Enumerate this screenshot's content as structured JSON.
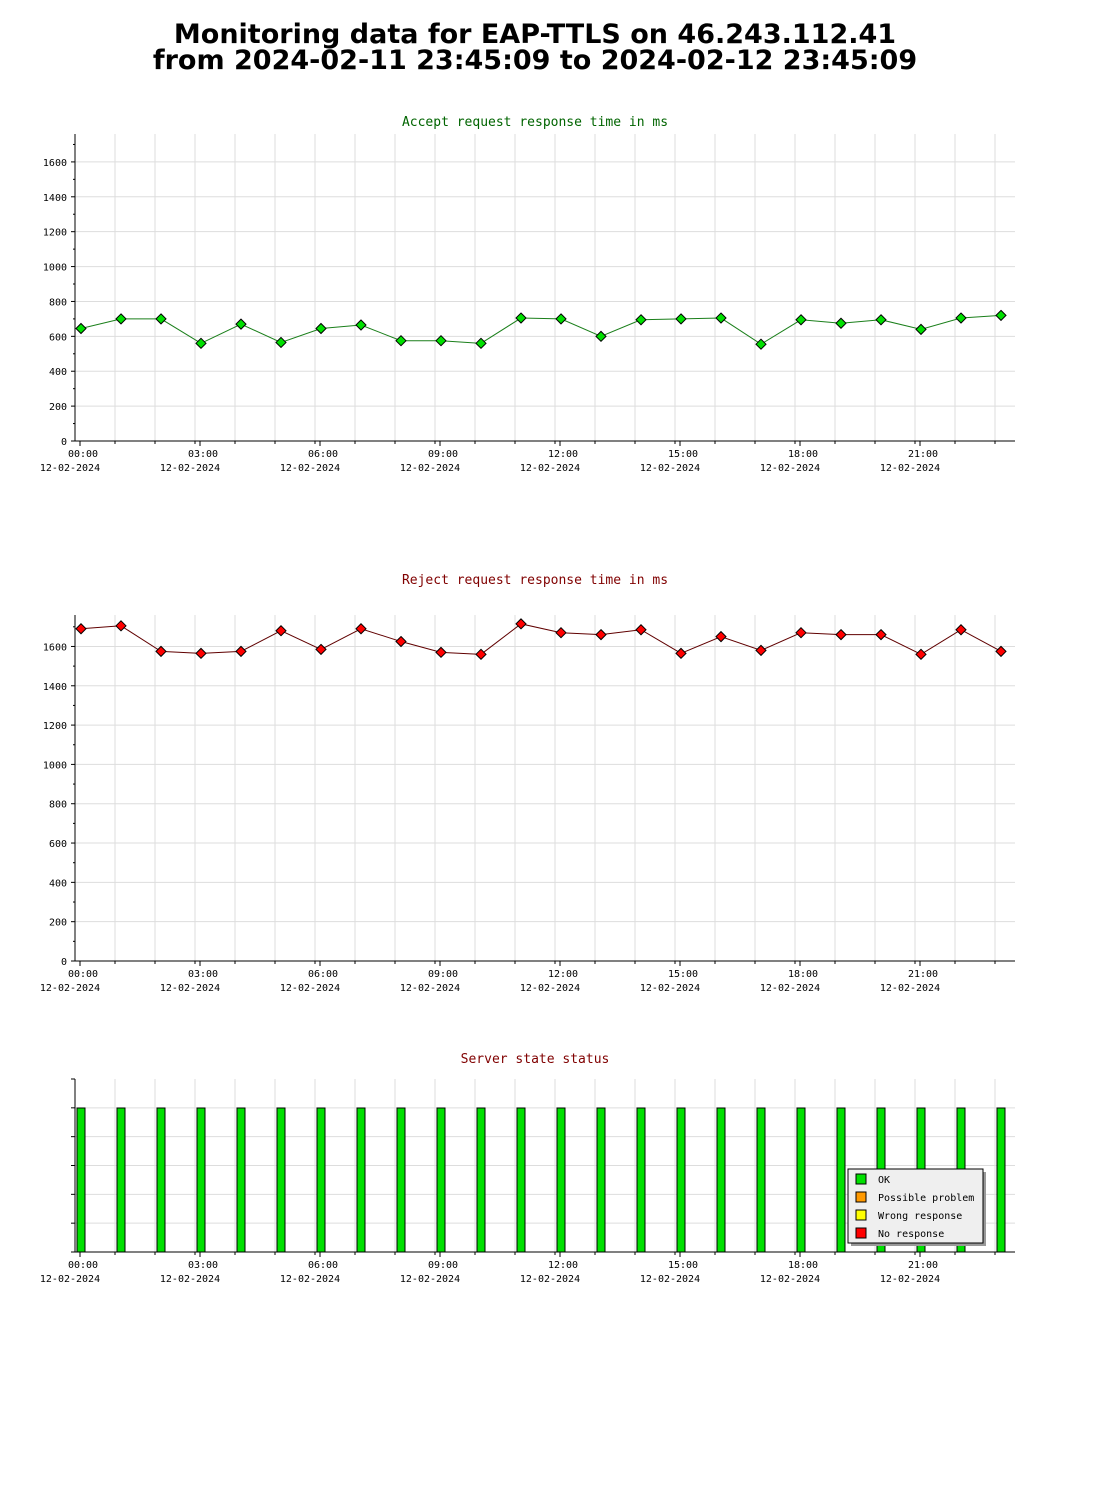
{
  "page": {
    "title_line1": "Monitoring data for EAP-TTLS on 46.243.112.41",
    "title_line2": "from 2024-02-11 23:45:09 to 2024-02-12 23:45:09"
  },
  "colors": {
    "accept_title": "#006400",
    "reject_title": "#800000",
    "state_title": "#800000",
    "accept_point": "#00e000",
    "accept_line": "#1a7f1a",
    "reject_point": "#ff0000",
    "reject_line": "#600000",
    "ok": "#00e000",
    "possible_problem": "#ff9900",
    "wrong_response": "#ffff00",
    "no_response": "#ff0000",
    "grid": "#dddddd"
  },
  "x_axis": {
    "ticks": [
      {
        "time": "00:00",
        "date": "12-02-2024"
      },
      {
        "time": "03:00",
        "date": "12-02-2024"
      },
      {
        "time": "06:00",
        "date": "12-02-2024"
      },
      {
        "time": "09:00",
        "date": "12-02-2024"
      },
      {
        "time": "12:00",
        "date": "12-02-2024"
      },
      {
        "time": "15:00",
        "date": "12-02-2024"
      },
      {
        "time": "18:00",
        "date": "12-02-2024"
      },
      {
        "time": "21:00",
        "date": "12-02-2024"
      }
    ]
  },
  "chart_data": [
    {
      "type": "line",
      "title": "Accept request response time in ms",
      "xlabel": "",
      "ylabel": "",
      "ylim": [
        0,
        1760
      ],
      "yticks": [
        0,
        200,
        400,
        600,
        800,
        1000,
        1200,
        1400,
        1600
      ],
      "grid": true,
      "x": [
        "2024-02-12 00:00",
        "2024-02-12 01:00",
        "2024-02-12 02:00",
        "2024-02-12 03:00",
        "2024-02-12 04:00",
        "2024-02-12 05:00",
        "2024-02-12 06:00",
        "2024-02-12 07:00",
        "2024-02-12 08:00",
        "2024-02-12 09:00",
        "2024-02-12 10:00",
        "2024-02-12 11:00",
        "2024-02-12 12:00",
        "2024-02-12 13:00",
        "2024-02-12 14:00",
        "2024-02-12 15:00",
        "2024-02-12 16:00",
        "2024-02-12 17:00",
        "2024-02-12 18:00",
        "2024-02-12 19:00",
        "2024-02-12 20:00",
        "2024-02-12 21:00",
        "2024-02-12 22:00",
        "2024-02-12 23:00"
      ],
      "values": [
        645,
        700,
        700,
        560,
        670,
        565,
        645,
        665,
        575,
        575,
        560,
        705,
        700,
        600,
        695,
        700,
        705,
        555,
        695,
        675,
        695,
        640,
        705,
        720
      ]
    },
    {
      "type": "line",
      "title": "Reject request response time in ms",
      "xlabel": "",
      "ylabel": "",
      "ylim": [
        0,
        1760
      ],
      "yticks": [
        0,
        200,
        400,
        600,
        800,
        1000,
        1200,
        1400,
        1600
      ],
      "grid": true,
      "x": [
        "2024-02-12 00:00",
        "2024-02-12 01:00",
        "2024-02-12 02:00",
        "2024-02-12 03:00",
        "2024-02-12 04:00",
        "2024-02-12 05:00",
        "2024-02-12 06:00",
        "2024-02-12 07:00",
        "2024-02-12 08:00",
        "2024-02-12 09:00",
        "2024-02-12 10:00",
        "2024-02-12 11:00",
        "2024-02-12 12:00",
        "2024-02-12 13:00",
        "2024-02-12 14:00",
        "2024-02-12 15:00",
        "2024-02-12 16:00",
        "2024-02-12 17:00",
        "2024-02-12 18:00",
        "2024-02-12 19:00",
        "2024-02-12 20:00",
        "2024-02-12 21:00",
        "2024-02-12 22:00",
        "2024-02-12 23:00"
      ],
      "values": [
        1690,
        1705,
        1575,
        1565,
        1575,
        1680,
        1585,
        1690,
        1625,
        1570,
        1560,
        1715,
        1670,
        1660,
        1685,
        1565,
        1650,
        1580,
        1670,
        1660,
        1660,
        1560,
        1685,
        1575
      ]
    },
    {
      "type": "bar",
      "title": "Server state status",
      "xlabel": "",
      "ylabel": "",
      "grid": true,
      "x": [
        "2024-02-12 00:00",
        "2024-02-12 01:00",
        "2024-02-12 02:00",
        "2024-02-12 03:00",
        "2024-02-12 04:00",
        "2024-02-12 05:00",
        "2024-02-12 06:00",
        "2024-02-12 07:00",
        "2024-02-12 08:00",
        "2024-02-12 09:00",
        "2024-02-12 10:00",
        "2024-02-12 11:00",
        "2024-02-12 12:00",
        "2024-02-12 13:00",
        "2024-02-12 14:00",
        "2024-02-12 15:00",
        "2024-02-12 16:00",
        "2024-02-12 17:00",
        "2024-02-12 18:00",
        "2024-02-12 19:00",
        "2024-02-12 20:00",
        "2024-02-12 21:00",
        "2024-02-12 22:00",
        "2024-02-12 23:00"
      ],
      "states": [
        "OK",
        "OK",
        "OK",
        "OK",
        "OK",
        "OK",
        "OK",
        "OK",
        "OK",
        "OK",
        "OK",
        "OK",
        "OK",
        "OK",
        "OK",
        "OK",
        "OK",
        "OK",
        "OK",
        "OK",
        "OK",
        "OK",
        "OK",
        "OK"
      ],
      "legend_position": "bottom-right",
      "legend": [
        {
          "label": "OK",
          "color": "#00e000"
        },
        {
          "label": "Possible problem",
          "color": "#ff9900"
        },
        {
          "label": "Wrong response",
          "color": "#ffff00"
        },
        {
          "label": "No response",
          "color": "#ff0000"
        }
      ]
    }
  ]
}
